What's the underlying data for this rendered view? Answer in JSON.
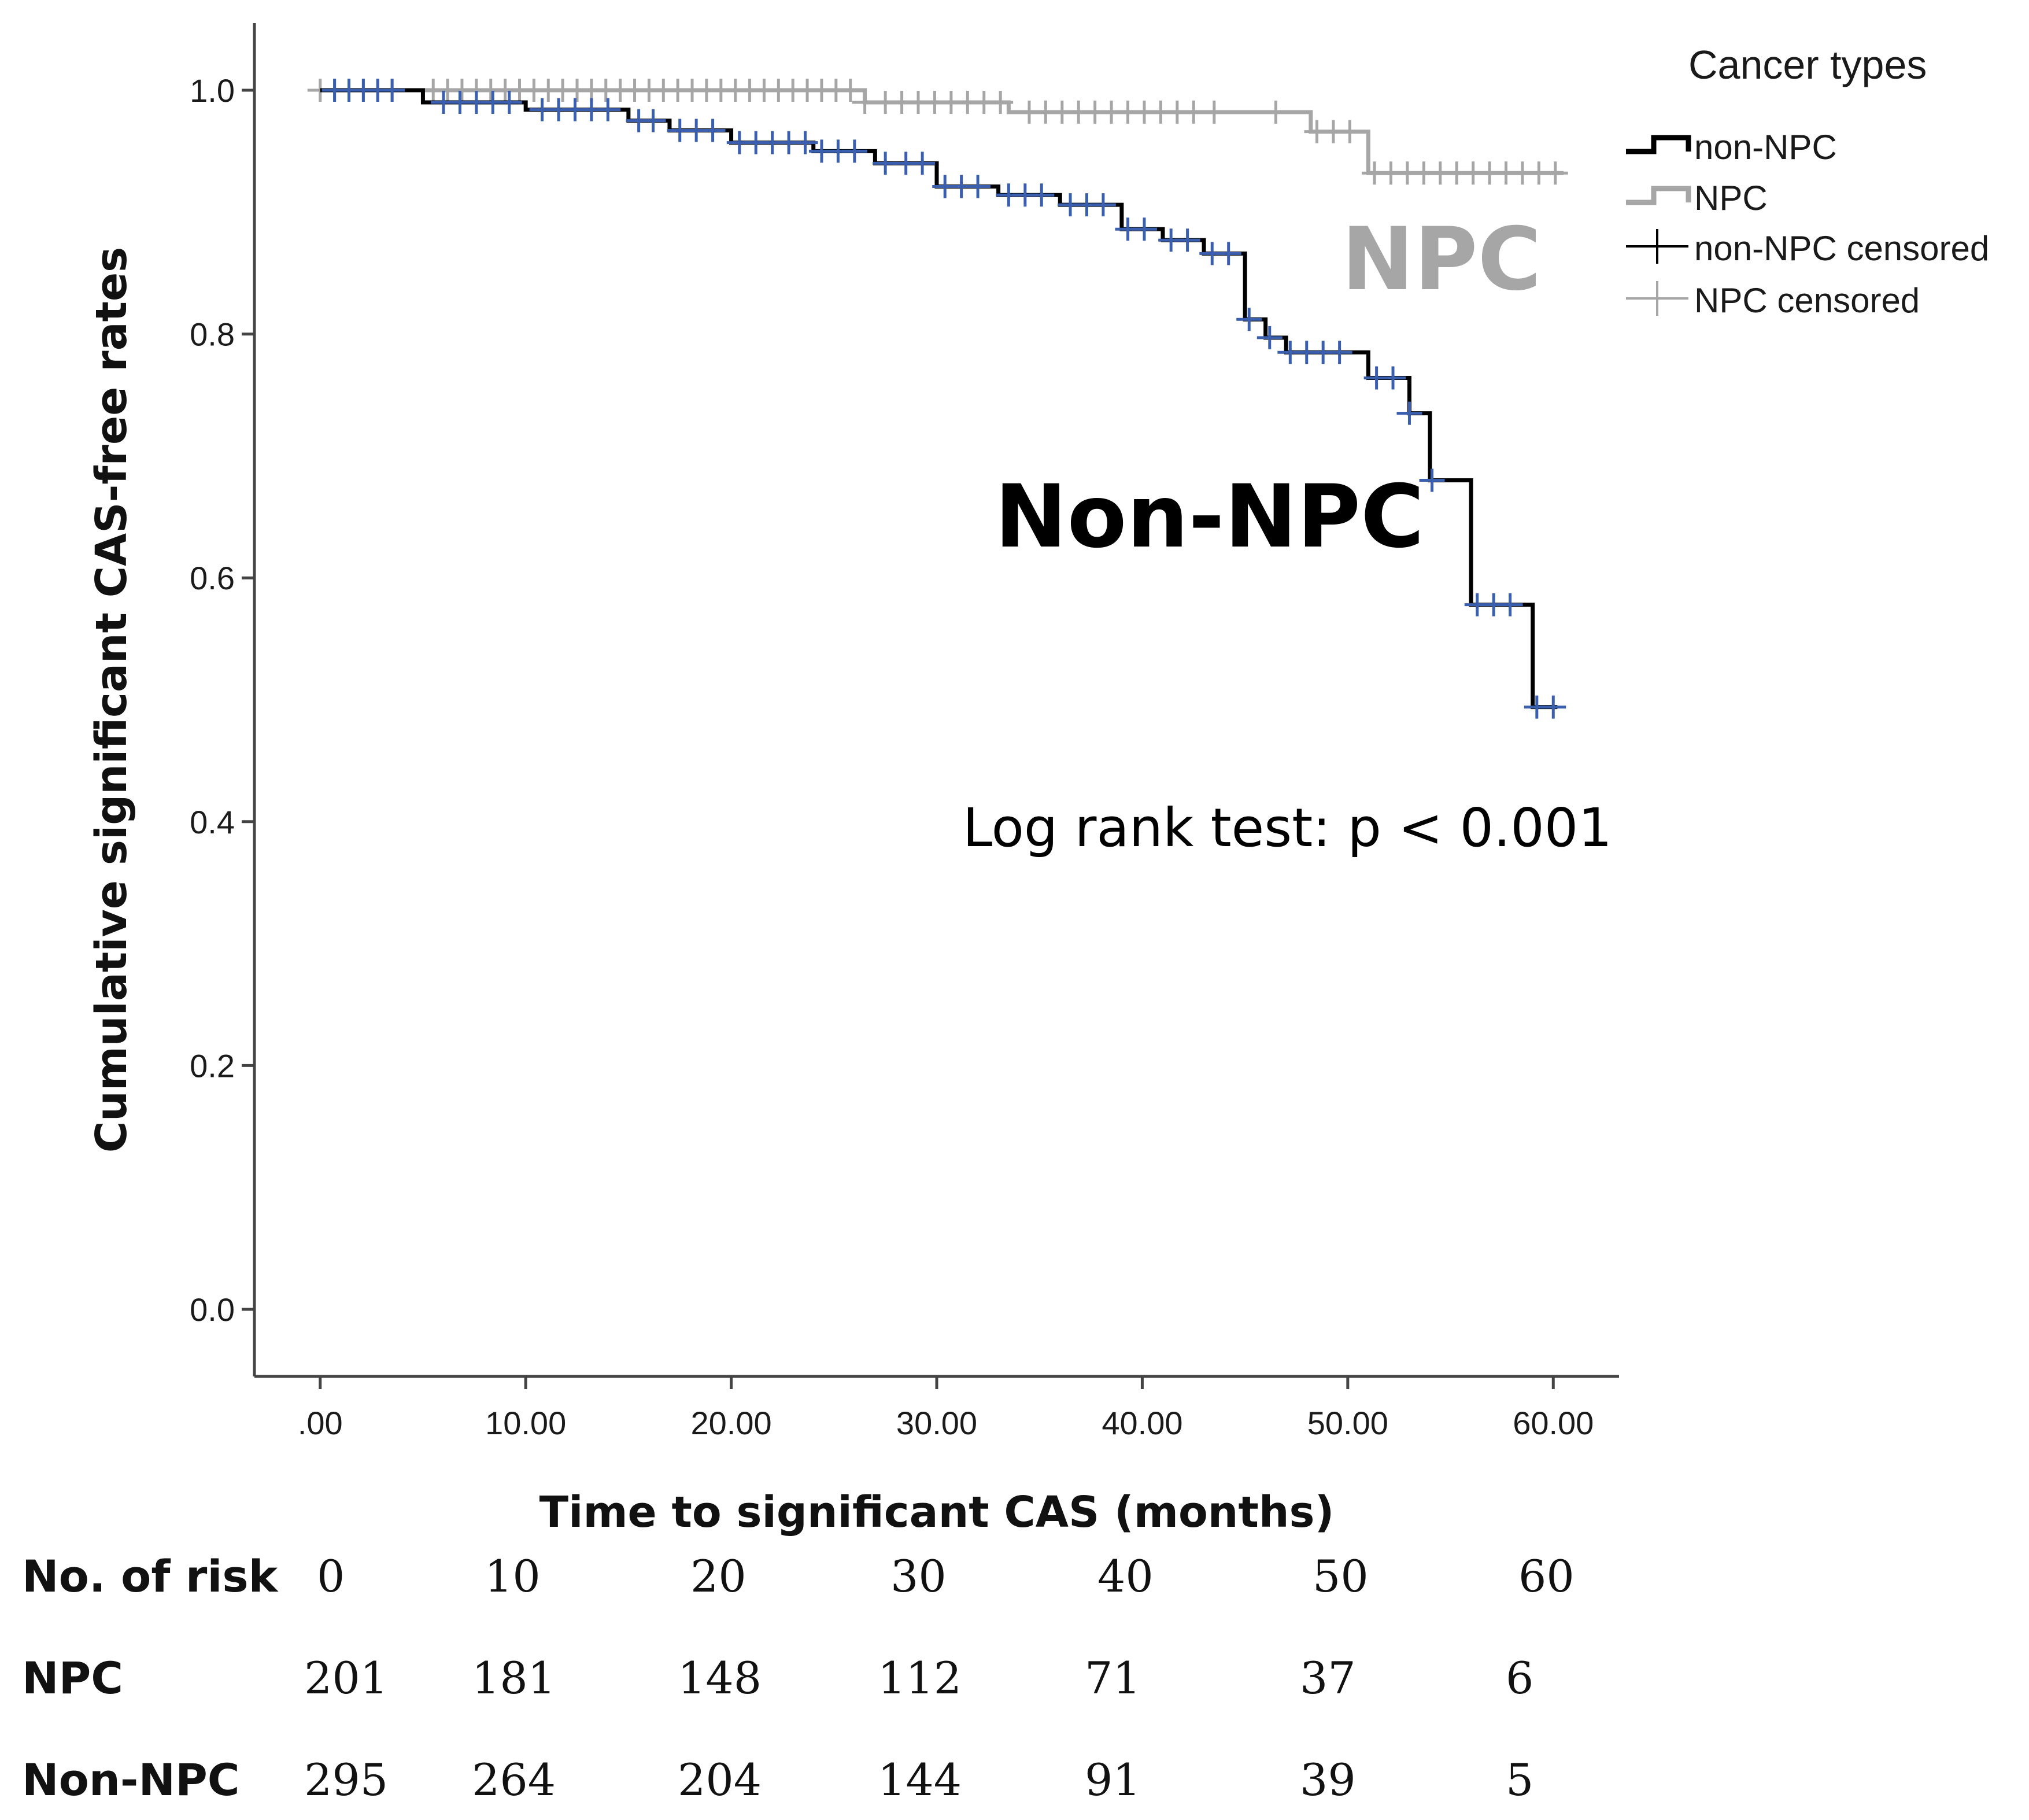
{
  "chart_data": {
    "type": "line",
    "subtype": "kaplan-meier",
    "xlabel": "Time to significant CAS (months)",
    "ylabel": "Cumulative significant CAS-free rates",
    "xlim": [
      -3.2,
      63.2
    ],
    "ylim": [
      -0.055,
      1.055
    ],
    "x_ticks": [
      0,
      10,
      20,
      30,
      40,
      50,
      60
    ],
    "x_tick_labels": [
      ".00",
      "10.00",
      "20.00",
      "30.00",
      "40.00",
      "50.00",
      "60.00"
    ],
    "y_ticks": [
      0.0,
      0.2,
      0.4,
      0.6,
      0.8,
      1.0
    ],
    "y_tick_labels": [
      "0.0",
      "0.2",
      "0.4",
      "0.6",
      "0.8",
      "1.0"
    ],
    "legend": {
      "title": "Cancer types",
      "position": "top-right",
      "entries": [
        "non-NPC",
        "NPC",
        "non-NPC censored",
        "NPC censored"
      ]
    },
    "series": [
      {
        "name": "NPC",
        "color": "#a6a6a6",
        "steps": [
          [
            0,
            1.0
          ],
          [
            26.5,
            0.99
          ],
          [
            33.5,
            0.982
          ],
          [
            48.2,
            0.966
          ],
          [
            51,
            0.932
          ],
          [
            60.5,
            0.932
          ]
        ],
        "censored": [
          0,
          0.7,
          1.4,
          2.1,
          2.8,
          3.5,
          5.5,
          6.2,
          6.9,
          7.6,
          8.3,
          9,
          9.7,
          10.4,
          11.1,
          11.8,
          12.5,
          13.2,
          13.9,
          14.6,
          15.3,
          16,
          16.7,
          17.4,
          18.1,
          18.8,
          19.5,
          20.2,
          20.9,
          21.6,
          22.3,
          23,
          23.7,
          24.4,
          25.1,
          25.8,
          26.5,
          27.5,
          28.3,
          29.1,
          29.9,
          30.7,
          31.5,
          32.3,
          33.1,
          34.5,
          35.3,
          36.1,
          36.9,
          37.7,
          38.5,
          39.3,
          40.1,
          40.9,
          41.7,
          42.5,
          43.5,
          46.5,
          48.5,
          49.3,
          50.1,
          51.3,
          52.1,
          52.9,
          53.7,
          54.5,
          55.3,
          56.1,
          56.9,
          57.7,
          58.5,
          59.3,
          60.1
        ]
      },
      {
        "name": "Non-NPC",
        "color": "#000000",
        "censor_color": "#3a5fae",
        "steps": [
          [
            0,
            1.0
          ],
          [
            5,
            0.99
          ],
          [
            10,
            0.984
          ],
          [
            15,
            0.975
          ],
          [
            17,
            0.967
          ],
          [
            20,
            0.957
          ],
          [
            24,
            0.95
          ],
          [
            27,
            0.94
          ],
          [
            30,
            0.921
          ],
          [
            33,
            0.914
          ],
          [
            36,
            0.906
          ],
          [
            39,
            0.886
          ],
          [
            41,
            0.877
          ],
          [
            43,
            0.866
          ],
          [
            45,
            0.812
          ],
          [
            46,
            0.797
          ],
          [
            47,
            0.785
          ],
          [
            51,
            0.764
          ],
          [
            53,
            0.735
          ],
          [
            54,
            0.68
          ],
          [
            56,
            0.578
          ],
          [
            59,
            0.494
          ],
          [
            60.2,
            0.494
          ]
        ],
        "censored": [
          0.7,
          1.4,
          2.1,
          2.8,
          3.5,
          6,
          6.8,
          7.6,
          8.4,
          9.2,
          10.8,
          11.6,
          12.4,
          13.2,
          14,
          15.5,
          16.2,
          17.5,
          18.3,
          19.1,
          20.4,
          21.2,
          22,
          22.8,
          23.6,
          24.4,
          25.2,
          26,
          27.5,
          28.5,
          29.3,
          30.4,
          31.2,
          32,
          33.5,
          34.3,
          35.1,
          36.5,
          37.3,
          38.1,
          39.3,
          40.1,
          41.4,
          42.2,
          43.4,
          44.2,
          45.2,
          46.2,
          47.2,
          48,
          48.8,
          49.6,
          51.4,
          52.2,
          53,
          54.1,
          56.3,
          57.1,
          57.9,
          59.2,
          60
        ]
      }
    ],
    "annotations": {
      "npc_label": "NPC",
      "non_npc_label": "Non-NPC",
      "log_rank": "Log rank test: p < 0.001"
    },
    "risk_table": {
      "header_label": "No. of risk",
      "times": [
        "0",
        "10",
        "20",
        "30",
        "40",
        "50",
        "60"
      ],
      "rows": [
        {
          "label": "NPC",
          "values": [
            "201",
            "181",
            "148",
            "112",
            "71",
            "37",
            "6"
          ]
        },
        {
          "label": "Non-NPC",
          "values": [
            "295",
            "264",
            "204",
            "144",
            "91",
            "39",
            "5"
          ]
        }
      ]
    }
  }
}
